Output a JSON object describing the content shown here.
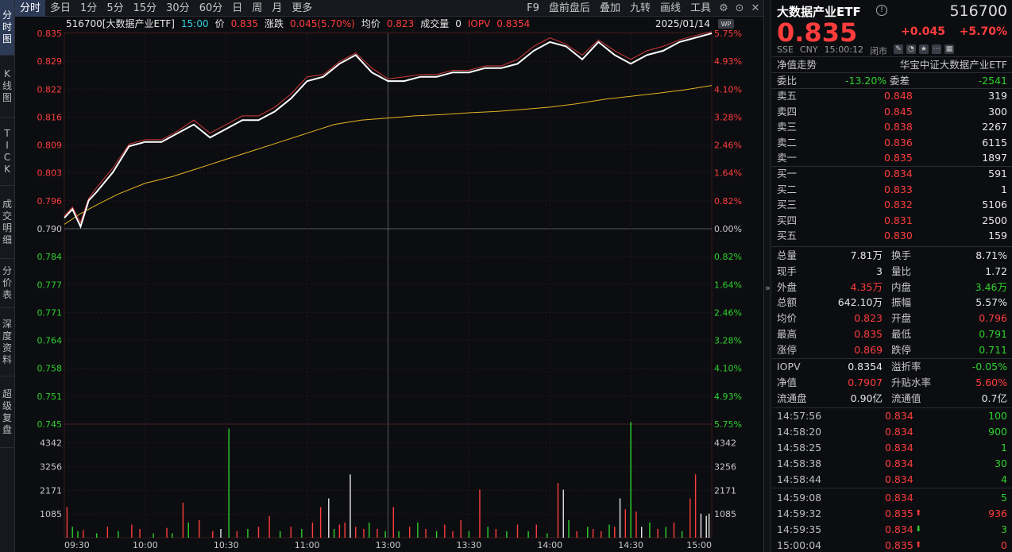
{
  "vtabs": [
    [
      "分",
      "时",
      "图"
    ],
    [
      "K",
      "线",
      "图"
    ],
    [
      "T",
      "I",
      "C",
      "K"
    ],
    [
      "成",
      "交",
      "明",
      "细"
    ],
    [
      "分",
      "价",
      "表"
    ],
    [
      "深",
      "度",
      "资",
      "料"
    ],
    [
      "超",
      "级",
      "复",
      "盘"
    ]
  ],
  "toolbar": {
    "left": [
      "分时",
      "多日",
      "1分",
      "5分",
      "15分",
      "30分",
      "60分",
      "日",
      "周",
      "月",
      "更多"
    ],
    "right": [
      "F9",
      "盘前盘后",
      "叠加",
      "九转",
      "画线",
      "工具"
    ],
    "icons": [
      "gear-icon",
      "circle-up-icon",
      "close-icon"
    ]
  },
  "chart_header": {
    "code_name": "516700[大数据产业ETF]",
    "time": "15:00",
    "price_label": "价",
    "price": "0.835",
    "change_label": "涨跌",
    "change": "0.045(5.70%)",
    "avg_label": "均价",
    "avg": "0.823",
    "vol_label": "成交量",
    "vol": "0",
    "iopv_label": "IOPV",
    "iopv": "0.8354",
    "date": "2025/01/14",
    "badge": "WP"
  },
  "chart_data": {
    "type": "line",
    "title": "516700[大数据产业ETF]",
    "ylim": [
      0.745,
      0.835
    ],
    "prev_close": 0.79,
    "yticks_left": [
      "0.835",
      "0.829",
      "0.822",
      "0.816",
      "0.809",
      "0.803",
      "0.796",
      "0.790",
      "0.784",
      "0.777",
      "0.771",
      "0.764",
      "0.758",
      "0.751",
      "0.745"
    ],
    "yticks_right": [
      "5.75%",
      "4.93%",
      "4.10%",
      "3.28%",
      "2.46%",
      "1.64%",
      "0.82%",
      "0.00%",
      "0.82%",
      "1.64%",
      "2.46%",
      "3.28%",
      "4.10%",
      "4.93%",
      "5.75%"
    ],
    "xticks": [
      "09:30",
      "10:00",
      "10:30",
      "11:00",
      "13:00",
      "13:30",
      "14:00",
      "14:30",
      "15:00"
    ],
    "vol_ticks": [
      "4342",
      "3256",
      "2171",
      "1085"
    ],
    "series": [
      {
        "name": "价",
        "color": "#ffffff",
        "x": [
          0,
          3,
          6,
          9,
          12,
          18,
          24,
          30,
          36,
          42,
          48,
          54,
          60,
          66,
          72,
          78,
          84,
          90,
          96,
          102,
          108,
          114,
          120,
          126,
          132,
          138,
          144,
          150,
          156,
          162,
          168,
          174,
          180,
          186,
          192,
          198,
          204,
          210,
          216,
          222,
          228,
          234,
          240
        ],
        "values": [
          0.7925,
          0.7945,
          0.7905,
          0.7965,
          0.7985,
          0.803,
          0.809,
          0.81,
          0.81,
          0.812,
          0.814,
          0.811,
          0.813,
          0.815,
          0.815,
          0.817,
          0.82,
          0.824,
          0.825,
          0.828,
          0.83,
          0.826,
          0.824,
          0.824,
          0.825,
          0.825,
          0.826,
          0.826,
          0.827,
          0.827,
          0.828,
          0.831,
          0.833,
          0.832,
          0.829,
          0.833,
          0.83,
          0.828,
          0.83,
          0.831,
          0.833,
          0.834,
          0.835
        ]
      },
      {
        "name": "IOPV",
        "color": "#d23a3a",
        "x": [
          0,
          3,
          6,
          9,
          12,
          18,
          24,
          30,
          36,
          42,
          48,
          54,
          60,
          66,
          72,
          78,
          84,
          90,
          96,
          102,
          108,
          114,
          120,
          126,
          132,
          138,
          144,
          150,
          156,
          162,
          168,
          174,
          180,
          186,
          192,
          198,
          204,
          210,
          216,
          222,
          228,
          234,
          240
        ],
        "values": [
          0.793,
          0.795,
          0.7915,
          0.797,
          0.7995,
          0.804,
          0.8095,
          0.8105,
          0.8105,
          0.8125,
          0.815,
          0.812,
          0.814,
          0.816,
          0.816,
          0.818,
          0.821,
          0.825,
          0.8255,
          0.8285,
          0.8305,
          0.827,
          0.8245,
          0.825,
          0.8255,
          0.8255,
          0.8265,
          0.8265,
          0.8275,
          0.8275,
          0.829,
          0.832,
          0.834,
          0.8325,
          0.83,
          0.8335,
          0.831,
          0.829,
          0.831,
          0.832,
          0.8335,
          0.8345,
          0.8354
        ]
      },
      {
        "name": "均价",
        "color": "#e6b422",
        "x": [
          0,
          6,
          12,
          20,
          30,
          40,
          50,
          60,
          70,
          80,
          90,
          100,
          110,
          120,
          130,
          140,
          150,
          160,
          170,
          180,
          190,
          200,
          210,
          220,
          230,
          240
        ],
        "values": [
          0.791,
          0.7935,
          0.7955,
          0.798,
          0.8005,
          0.802,
          0.804,
          0.806,
          0.808,
          0.81,
          0.812,
          0.814,
          0.815,
          0.8155,
          0.816,
          0.8163,
          0.8167,
          0.817,
          0.8175,
          0.818,
          0.8188,
          0.8198,
          0.8205,
          0.8212,
          0.822,
          0.823
        ]
      }
    ],
    "volume": {
      "max": 5200,
      "bars": [
        [
          1,
          1400,
          "r"
        ],
        [
          3,
          500,
          "g"
        ],
        [
          5,
          300,
          "g"
        ],
        [
          7,
          350,
          "r"
        ],
        [
          12,
          200,
          "g"
        ],
        [
          16,
          500,
          "r"
        ],
        [
          20,
          300,
          "g"
        ],
        [
          25,
          600,
          "r"
        ],
        [
          28,
          400,
          "r"
        ],
        [
          33,
          200,
          "g"
        ],
        [
          38,
          450,
          "r"
        ],
        [
          40,
          200,
          "g"
        ],
        [
          44,
          1600,
          "r"
        ],
        [
          46,
          700,
          "g"
        ],
        [
          50,
          800,
          "r"
        ],
        [
          55,
          300,
          "r"
        ],
        [
          58,
          400,
          "w"
        ],
        [
          61,
          5000,
          "g"
        ],
        [
          64,
          300,
          "r"
        ],
        [
          68,
          400,
          "g"
        ],
        [
          72,
          500,
          "r"
        ],
        [
          76,
          1000,
          "r"
        ],
        [
          80,
          300,
          "g"
        ],
        [
          84,
          500,
          "r"
        ],
        [
          88,
          400,
          "g"
        ],
        [
          92,
          700,
          "r"
        ],
        [
          95,
          1400,
          "r"
        ],
        [
          98,
          1800,
          "w"
        ],
        [
          100,
          400,
          "g"
        ],
        [
          102,
          600,
          "r"
        ],
        [
          104,
          700,
          "r"
        ],
        [
          106,
          2900,
          "w"
        ],
        [
          108,
          500,
          "r"
        ],
        [
          111,
          400,
          "r"
        ],
        [
          113,
          700,
          "g"
        ],
        [
          116,
          400,
          "r"
        ],
        [
          119,
          300,
          "g"
        ],
        [
          122,
          1400,
          "r"
        ],
        [
          124,
          300,
          "g"
        ],
        [
          128,
          500,
          "r"
        ],
        [
          131,
          700,
          "g"
        ],
        [
          134,
          400,
          "r"
        ],
        [
          138,
          300,
          "g"
        ],
        [
          141,
          600,
          "r"
        ],
        [
          144,
          300,
          "r"
        ],
        [
          147,
          800,
          "r"
        ],
        [
          150,
          300,
          "g"
        ],
        [
          154,
          2200,
          "r"
        ],
        [
          157,
          500,
          "g"
        ],
        [
          160,
          400,
          "r"
        ],
        [
          164,
          300,
          "g"
        ],
        [
          168,
          600,
          "r"
        ],
        [
          172,
          300,
          "g"
        ],
        [
          175,
          600,
          "r"
        ],
        [
          179,
          200,
          "g"
        ],
        [
          183,
          2500,
          "r"
        ],
        [
          185,
          2200,
          "w"
        ],
        [
          187,
          800,
          "g"
        ],
        [
          190,
          300,
          "r"
        ],
        [
          194,
          500,
          "g"
        ],
        [
          196,
          400,
          "r"
        ],
        [
          199,
          300,
          "r"
        ],
        [
          202,
          600,
          "g"
        ],
        [
          204,
          500,
          "r"
        ],
        [
          206,
          1800,
          "w"
        ],
        [
          208,
          1300,
          "r"
        ],
        [
          210,
          5300,
          "g"
        ],
        [
          212,
          1200,
          "r"
        ],
        [
          214,
          500,
          "w"
        ],
        [
          217,
          700,
          "g"
        ],
        [
          220,
          400,
          "r"
        ],
        [
          223,
          500,
          "g"
        ],
        [
          226,
          700,
          "r"
        ],
        [
          229,
          300,
          "g"
        ],
        [
          232,
          1800,
          "r"
        ],
        [
          234,
          2900,
          "r"
        ],
        [
          236,
          1100,
          "w"
        ],
        [
          238,
          1000,
          "w"
        ],
        [
          239,
          1100,
          "w"
        ]
      ]
    }
  },
  "panel": {
    "name": "大数据产业ETF",
    "code": "516700",
    "price": "0.835",
    "change": "+0.045",
    "pct": "+5.70%",
    "sub": [
      "SSE",
      "CNY",
      "15:00:12",
      "闭市"
    ],
    "nav_row": {
      "left": "净值走势",
      "right": "华宝中证大数据产业ETF"
    },
    "ratio": {
      "l1": "委比",
      "v1": "-13.20%",
      "l2": "委差",
      "v2": "-2541"
    },
    "asks": [
      [
        "卖五",
        "0.848",
        "319"
      ],
      [
        "卖四",
        "0.845",
        "300"
      ],
      [
        "卖三",
        "0.838",
        "2267"
      ],
      [
        "卖二",
        "0.836",
        "6115"
      ],
      [
        "卖一",
        "0.835",
        "1897"
      ]
    ],
    "bids": [
      [
        "买一",
        "0.834",
        "591"
      ],
      [
        "买二",
        "0.833",
        "1"
      ],
      [
        "买三",
        "0.832",
        "5106"
      ],
      [
        "买四",
        "0.831",
        "2500"
      ],
      [
        "买五",
        "0.830",
        "159"
      ]
    ],
    "stats": [
      [
        "总量",
        "7.81万",
        "换手",
        "8.71%"
      ],
      [
        "现手",
        "3",
        "量比",
        "1.72"
      ],
      [
        "外盘",
        "4.35万",
        "内盘",
        "3.46万"
      ],
      [
        "总额",
        "642.10万",
        "振幅",
        "5.57%"
      ],
      [
        "均价",
        "0.823",
        "开盘",
        "0.796"
      ],
      [
        "最高",
        "0.835",
        "最低",
        "0.791"
      ],
      [
        "涨停",
        "0.869",
        "跌停",
        "0.711"
      ]
    ],
    "stats2": [
      [
        "IOPV",
        "0.8354",
        "溢折率",
        "-0.05%"
      ],
      [
        "净值",
        "0.7907",
        "升贴水率",
        "5.60%"
      ],
      [
        "流通盘",
        "0.90亿",
        "流通值",
        "0.7亿"
      ]
    ],
    "trades": [
      [
        "14:57:56",
        "0.834",
        "100",
        ""
      ],
      [
        "14:58:20",
        "0.834",
        "900",
        ""
      ],
      [
        "14:58:25",
        "0.834",
        "1",
        ""
      ],
      [
        "14:58:38",
        "0.834",
        "30",
        ""
      ],
      [
        "14:58:44",
        "0.834",
        "4",
        ""
      ],
      [
        "14:59:08",
        "0.834",
        "5",
        ""
      ],
      [
        "14:59:32",
        "0.835",
        "936",
        "up"
      ],
      [
        "14:59:35",
        "0.834",
        "3",
        "down"
      ],
      [
        "15:00:04",
        "0.835",
        "0",
        "up"
      ]
    ]
  }
}
